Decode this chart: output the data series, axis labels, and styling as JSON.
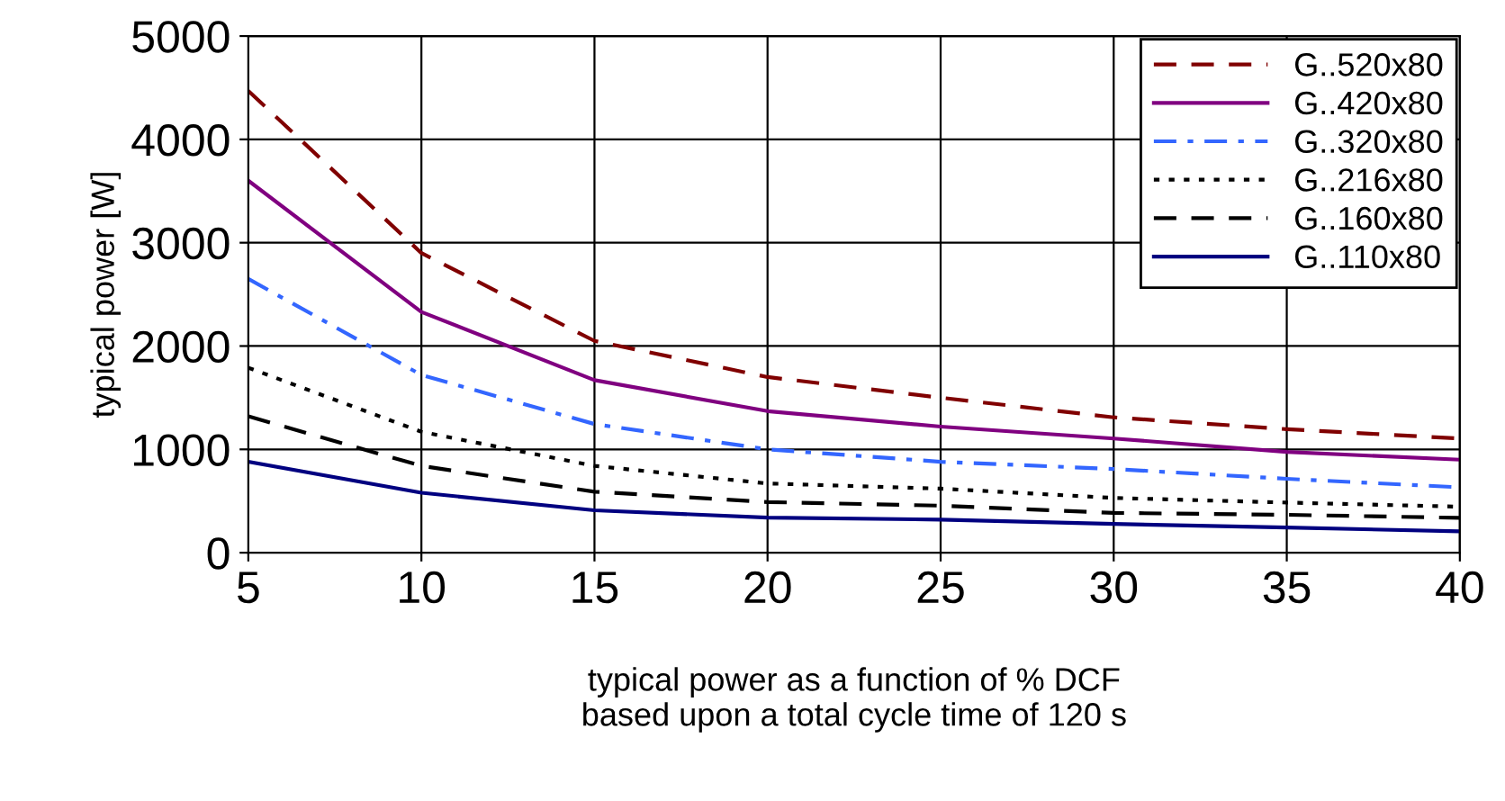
{
  "chart_data": {
    "type": "line",
    "xlabel": "typical power as a function of % DCF\nbased upon a total cycle time of 120 s",
    "ylabel": "typical power [W]",
    "x": [
      5,
      10,
      15,
      20,
      25,
      30,
      35,
      40
    ],
    "series": [
      {
        "name": "G..520x80",
        "color": "#800000",
        "line_style": "dashed",
        "values": [
          4470,
          2900,
          2050,
          1700,
          1500,
          1310,
          1195,
          1105
        ]
      },
      {
        "name": "G..420x80",
        "color": "#800080",
        "line_style": "solid",
        "values": [
          3600,
          2330,
          1670,
          1370,
          1220,
          1105,
          975,
          900
        ]
      },
      {
        "name": "G..320x80",
        "color": "#3366ff",
        "line_style": "dashdot",
        "values": [
          2650,
          1720,
          1245,
          1000,
          880,
          810,
          715,
          633
        ]
      },
      {
        "name": "G..216x80",
        "color": "#000000",
        "line_style": "dotted",
        "values": [
          1790,
          1170,
          840,
          670,
          620,
          530,
          485,
          445
        ]
      },
      {
        "name": "G..160x80",
        "color": "#000000",
        "line_style": "dashed",
        "values": [
          1320,
          840,
          590,
          490,
          455,
          385,
          367,
          337
        ]
      },
      {
        "name": "G..110x80",
        "color": "#000080",
        "line_style": "solid",
        "values": [
          880,
          580,
          410,
          340,
          320,
          278,
          243,
          207
        ]
      }
    ],
    "xlim": [
      5,
      40
    ],
    "xticks": [
      5,
      10,
      15,
      20,
      25,
      30,
      35,
      40
    ],
    "ylim": [
      0,
      5000
    ],
    "yticks": [
      0,
      1000,
      2000,
      3000,
      4000,
      5000
    ],
    "grid": true,
    "legend": "top right",
    "marker": "none"
  }
}
